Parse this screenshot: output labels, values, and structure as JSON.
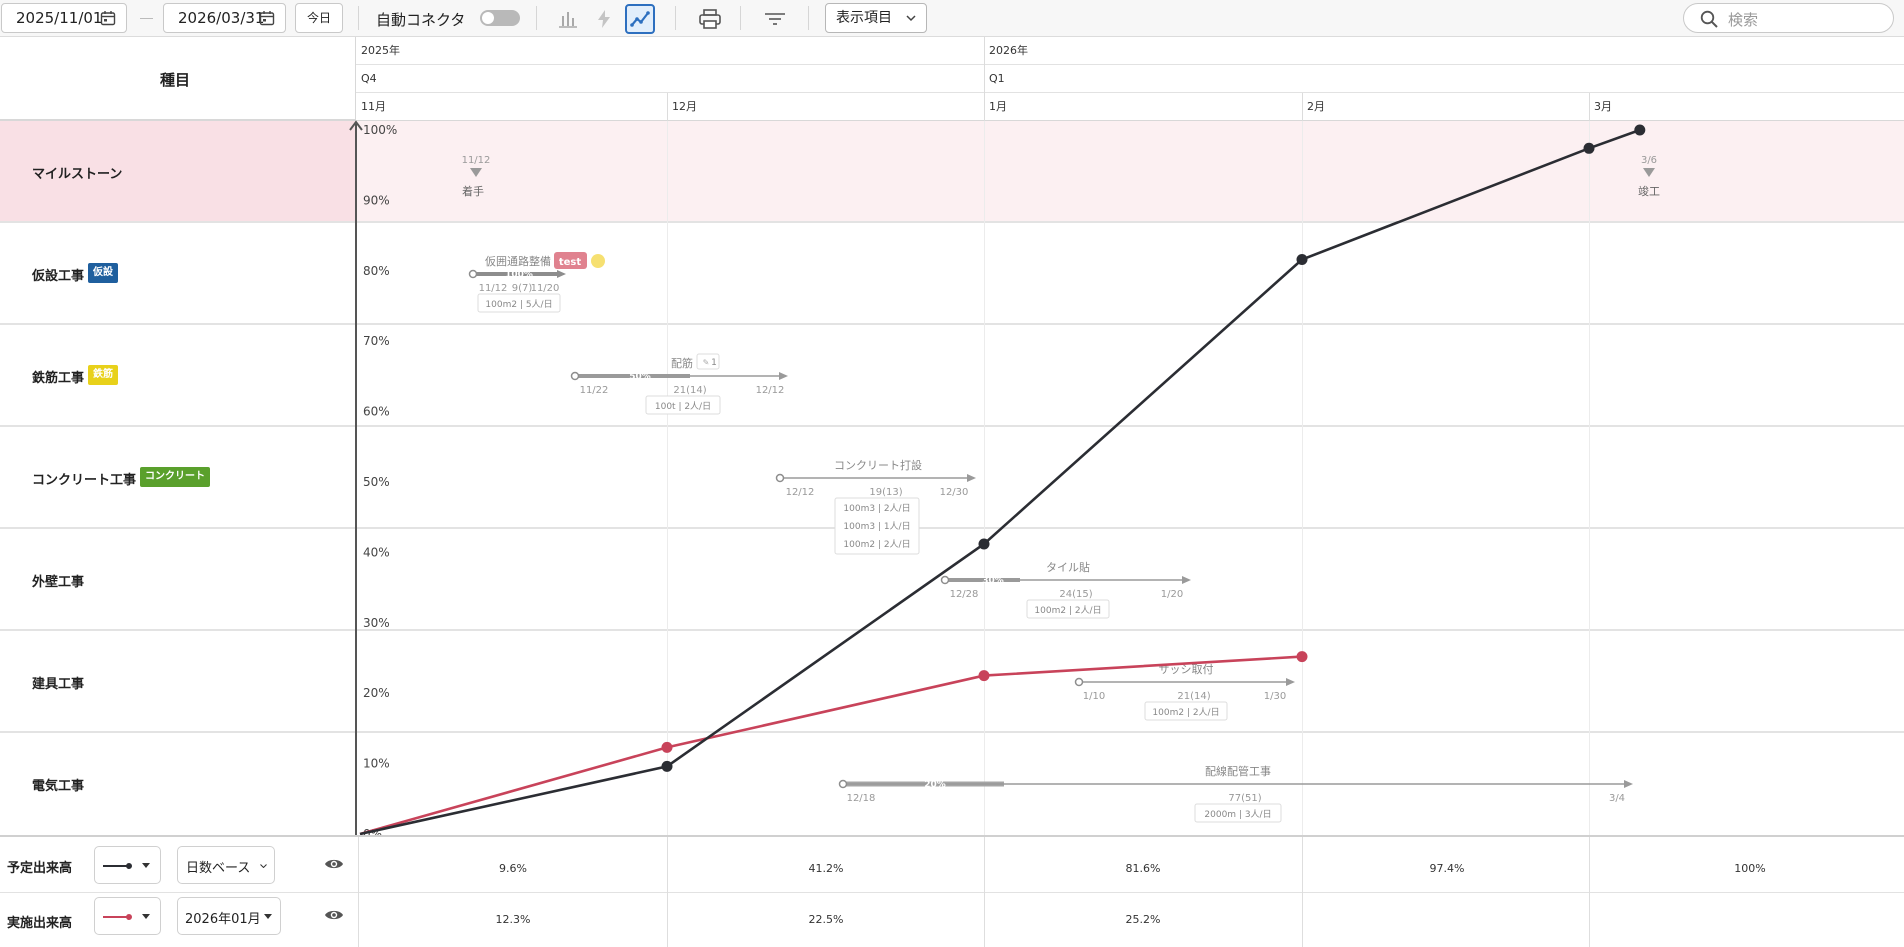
{
  "toolbar": {
    "start_date": "2025/11/01",
    "end_date": "2026/03/31",
    "today_label": "今日",
    "auto_connector_label": "自動コネクタ",
    "display_items_label": "表示項目",
    "search_placeholder": "検索"
  },
  "left_header": {
    "title": "種目"
  },
  "timeline": {
    "years": [
      "2025年",
      "2026年"
    ],
    "quarters": [
      "Q4",
      "Q1"
    ],
    "months": [
      "11月",
      "12月",
      "1月",
      "2月",
      "3月"
    ]
  },
  "rows": [
    {
      "name": "マイルストーン",
      "badge": ""
    },
    {
      "name": "仮設工事",
      "badge": "仮設",
      "badge_color": "#1f5f9e"
    },
    {
      "name": "鉄筋工事",
      "badge": "鉄筋",
      "badge_color": "#e8d11a"
    },
    {
      "name": "コンクリート工事",
      "badge": "コンクリート",
      "badge_color": "#5aa02c"
    },
    {
      "name": "外壁工事",
      "badge": ""
    },
    {
      "name": "建具工事",
      "badge": ""
    },
    {
      "name": "電気工事",
      "badge": ""
    }
  ],
  "milestones": [
    {
      "date": "11/12",
      "label": "着手"
    },
    {
      "date": "3/6",
      "label": "竣工"
    }
  ],
  "tasks": [
    {
      "title": "仮囲通路整備",
      "tag": "test",
      "progress": "100%",
      "start": "11/12",
      "duration": "9(7)",
      "end": "11/20",
      "resources": [
        "100m2 | 5人/日"
      ]
    },
    {
      "title": "配筋",
      "comment_count": "1",
      "progress": "50%",
      "start": "11/22",
      "duration": "21(14)",
      "end": "12/12",
      "resources": [
        "100t | 2人/日"
      ]
    },
    {
      "title": "コンクリート打設",
      "progress": "",
      "start": "12/12",
      "duration": "19(13)",
      "end": "12/30",
      "resources": [
        "100m3 | 2人/日",
        "100m3 | 1人/日",
        "100m2 | 2人/日"
      ]
    },
    {
      "title": "タイル貼",
      "progress": "30%",
      "start": "12/28",
      "duration": "24(15)",
      "end": "1/20",
      "resources": [
        "100m2 | 2人/日"
      ]
    },
    {
      "title": "サッシ取付",
      "progress": "",
      "start": "1/10",
      "duration": "21(14)",
      "end": "1/30",
      "resources": [
        "100m2 | 2人/日"
      ]
    },
    {
      "title": "配線配管工事",
      "progress": "20%",
      "start": "12/18",
      "duration": "77(51)",
      "end": "3/4",
      "resources": [
        "2000m | 3人/日"
      ]
    }
  ],
  "chart_data": {
    "type": "line",
    "ylim": [
      0,
      100
    ],
    "yticks": [
      "100%",
      "90%",
      "80%",
      "70%",
      "60%",
      "50%",
      "40%",
      "30%",
      "20%",
      "10%",
      "0%"
    ],
    "series": [
      {
        "name": "予定出来高",
        "color": "#2b2d33",
        "x": [
          "11/01",
          "12/01",
          "01/01",
          "02/01",
          "03/01",
          "03/06"
        ],
        "values": [
          0,
          9.6,
          41.2,
          81.6,
          97.4,
          100
        ]
      },
      {
        "name": "実施出来高",
        "color": "#c8435a",
        "x": [
          "11/01",
          "12/01",
          "01/01",
          "02/01"
        ],
        "values": [
          0,
          12.3,
          22.5,
          25.2
        ]
      }
    ]
  },
  "footer": {
    "planned": {
      "label": "予定出来高",
      "basis": "日数ベース",
      "values": [
        "9.6%",
        "41.2%",
        "81.6%",
        "97.4%",
        "100%"
      ]
    },
    "actual": {
      "label": "実施出来高",
      "month": "2026年01月",
      "values": [
        "12.3%",
        "22.5%",
        "25.2%"
      ]
    }
  }
}
